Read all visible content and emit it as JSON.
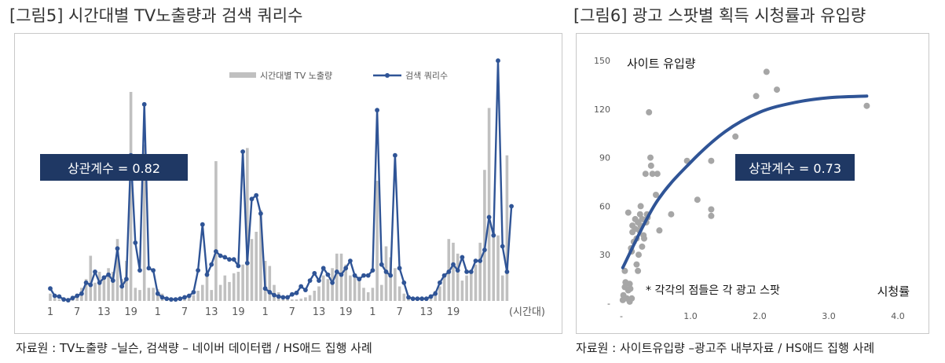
{
  "figure5": {
    "title": "[그림5] 시간대별 TV노출량과 검색 쿼리수",
    "source": "자료원 : TV노출량 –닐슨, 검색량 – 네이버 데이터랩 / HS애드 집행 사례",
    "correlation_label": "상관계수 = 0.82"
  },
  "figure6": {
    "title": "[그림6] 광고 스팟별 획득 시청률과 유입량",
    "source": "자료원 : 사이트유입량 –광고주 내부자료 / HS애드 집행 사례",
    "correlation_label": "상관계수 = 0.73",
    "annotation": "* 각각의 점들은 각 광고 스팟"
  },
  "colors": {
    "bar": "#c0c0c0",
    "line": "#2f5496",
    "box": "#1f3864",
    "scatter": "#a6a6a6",
    "trend": "#2f5496"
  },
  "chart_data": [
    {
      "type": "bar+line",
      "x_tick_labels": [
        "1",
        "7",
        "13",
        "19",
        "1",
        "7",
        "13",
        "19",
        "1",
        "7",
        "13",
        "19",
        "1",
        "7",
        "13",
        "19",
        "(시간대)"
      ],
      "legend": {
        "bar": "시간대별 TV 노출량",
        "line": "검색 쿼리수",
        "position": "top-right"
      },
      "ylim": [
        0,
        300
      ],
      "series": [
        {
          "name": "시간대별 TV 노출량",
          "type": "bar",
          "values": [
            10,
            4,
            2,
            2,
            4,
            7,
            10,
            18,
            30,
            62,
            25,
            40,
            30,
            45,
            40,
            85,
            30,
            55,
            287,
            18,
            15,
            215,
            18,
            18,
            16,
            10,
            4,
            2,
            2,
            3,
            3,
            5,
            8,
            14,
            22,
            40,
            15,
            192,
            22,
            35,
            26,
            38,
            40,
            50,
            210,
            85,
            95,
            125,
            55,
            48,
            22,
            12,
            5,
            3,
            2,
            2,
            3,
            5,
            8,
            14,
            20,
            35,
            30,
            45,
            65,
            65,
            50,
            35,
            33,
            28,
            18,
            12,
            18,
            165,
            22,
            75,
            60,
            45,
            20,
            10,
            4,
            2,
            2,
            2,
            3,
            8,
            14,
            20,
            35,
            85,
            80,
            65,
            28,
            35,
            40,
            50,
            80,
            180,
            265,
            95,
            90,
            35,
            200
          ]
        },
        {
          "name": "검색 쿼리수",
          "type": "line",
          "values": [
            17,
            7,
            6,
            2,
            1,
            4,
            7,
            10,
            25,
            22,
            40,
            25,
            32,
            36,
            28,
            72,
            20,
            30,
            200,
            80,
            42,
            270,
            45,
            42,
            10,
            5,
            3,
            2,
            2,
            3,
            5,
            7,
            12,
            42,
            105,
            36,
            50,
            68,
            62,
            60,
            57,
            57,
            48,
            205,
            52,
            140,
            145,
            120,
            17,
            12,
            8,
            6,
            5,
            5,
            9,
            11,
            20,
            15,
            28,
            38,
            28,
            45,
            36,
            25,
            40,
            36,
            45,
            55,
            35,
            30,
            35,
            35,
            42,
            262,
            50,
            40,
            35,
            200,
            45,
            25,
            5,
            3,
            3,
            3,
            3,
            6,
            10,
            25,
            35,
            40,
            50,
            42,
            60,
            40,
            40,
            55,
            55,
            70,
            115,
            90,
            330,
            75,
            40,
            130
          ]
        }
      ]
    },
    {
      "type": "scatter",
      "xlabel": "시청률",
      "ylabel": "사이트 유입량",
      "x_ticks": [
        "-",
        "1.0",
        "2.0",
        "3.0",
        "4.0"
      ],
      "y_ticks": [
        "-",
        "30",
        "60",
        "90",
        "120",
        "150"
      ],
      "xlim": [
        0,
        4
      ],
      "ylim": [
        0,
        150
      ],
      "grid": false,
      "trendline": {
        "type": "curve",
        "x": [
          0.02,
          0.5,
          1.0,
          1.5,
          2.0,
          2.5,
          3.0,
          3.55
        ],
        "y": [
          22,
          62,
          87,
          106,
          118,
          124,
          127,
          128
        ]
      },
      "points": [
        [
          0.02,
          2
        ],
        [
          0.03,
          5
        ],
        [
          0.05,
          10
        ],
        [
          0.05,
          20
        ],
        [
          0.06,
          13
        ],
        [
          0.08,
          3
        ],
        [
          0.1,
          8
        ],
        [
          0.1,
          56
        ],
        [
          0.12,
          1
        ],
        [
          0.12,
          12
        ],
        [
          0.13,
          9
        ],
        [
          0.14,
          34
        ],
        [
          0.15,
          3
        ],
        [
          0.15,
          32
        ],
        [
          0.16,
          44
        ],
        [
          0.16,
          48
        ],
        [
          0.18,
          38
        ],
        [
          0.2,
          46
        ],
        [
          0.2,
          52
        ],
        [
          0.22,
          40
        ],
        [
          0.22,
          24
        ],
        [
          0.24,
          50
        ],
        [
          0.24,
          20
        ],
        [
          0.25,
          30
        ],
        [
          0.26,
          45
        ],
        [
          0.27,
          55
        ],
        [
          0.28,
          48
        ],
        [
          0.28,
          60
        ],
        [
          0.3,
          35
        ],
        [
          0.3,
          52
        ],
        [
          0.32,
          42
        ],
        [
          0.33,
          40
        ],
        [
          0.35,
          80
        ],
        [
          0.36,
          50
        ],
        [
          0.37,
          55
        ],
        [
          0.38,
          53
        ],
        [
          0.4,
          118
        ],
        [
          0.42,
          90
        ],
        [
          0.43,
          85
        ],
        [
          0.45,
          80
        ],
        [
          0.5,
          67
        ],
        [
          0.52,
          80
        ],
        [
          0.55,
          45
        ],
        [
          0.72,
          55
        ],
        [
          0.95,
          88
        ],
        [
          1.1,
          64
        ],
        [
          1.3,
          58
        ],
        [
          1.3,
          54
        ],
        [
          1.3,
          88
        ],
        [
          1.65,
          103
        ],
        [
          1.95,
          128
        ],
        [
          2.1,
          143
        ],
        [
          2.25,
          132
        ],
        [
          3.55,
          122
        ]
      ]
    }
  ]
}
